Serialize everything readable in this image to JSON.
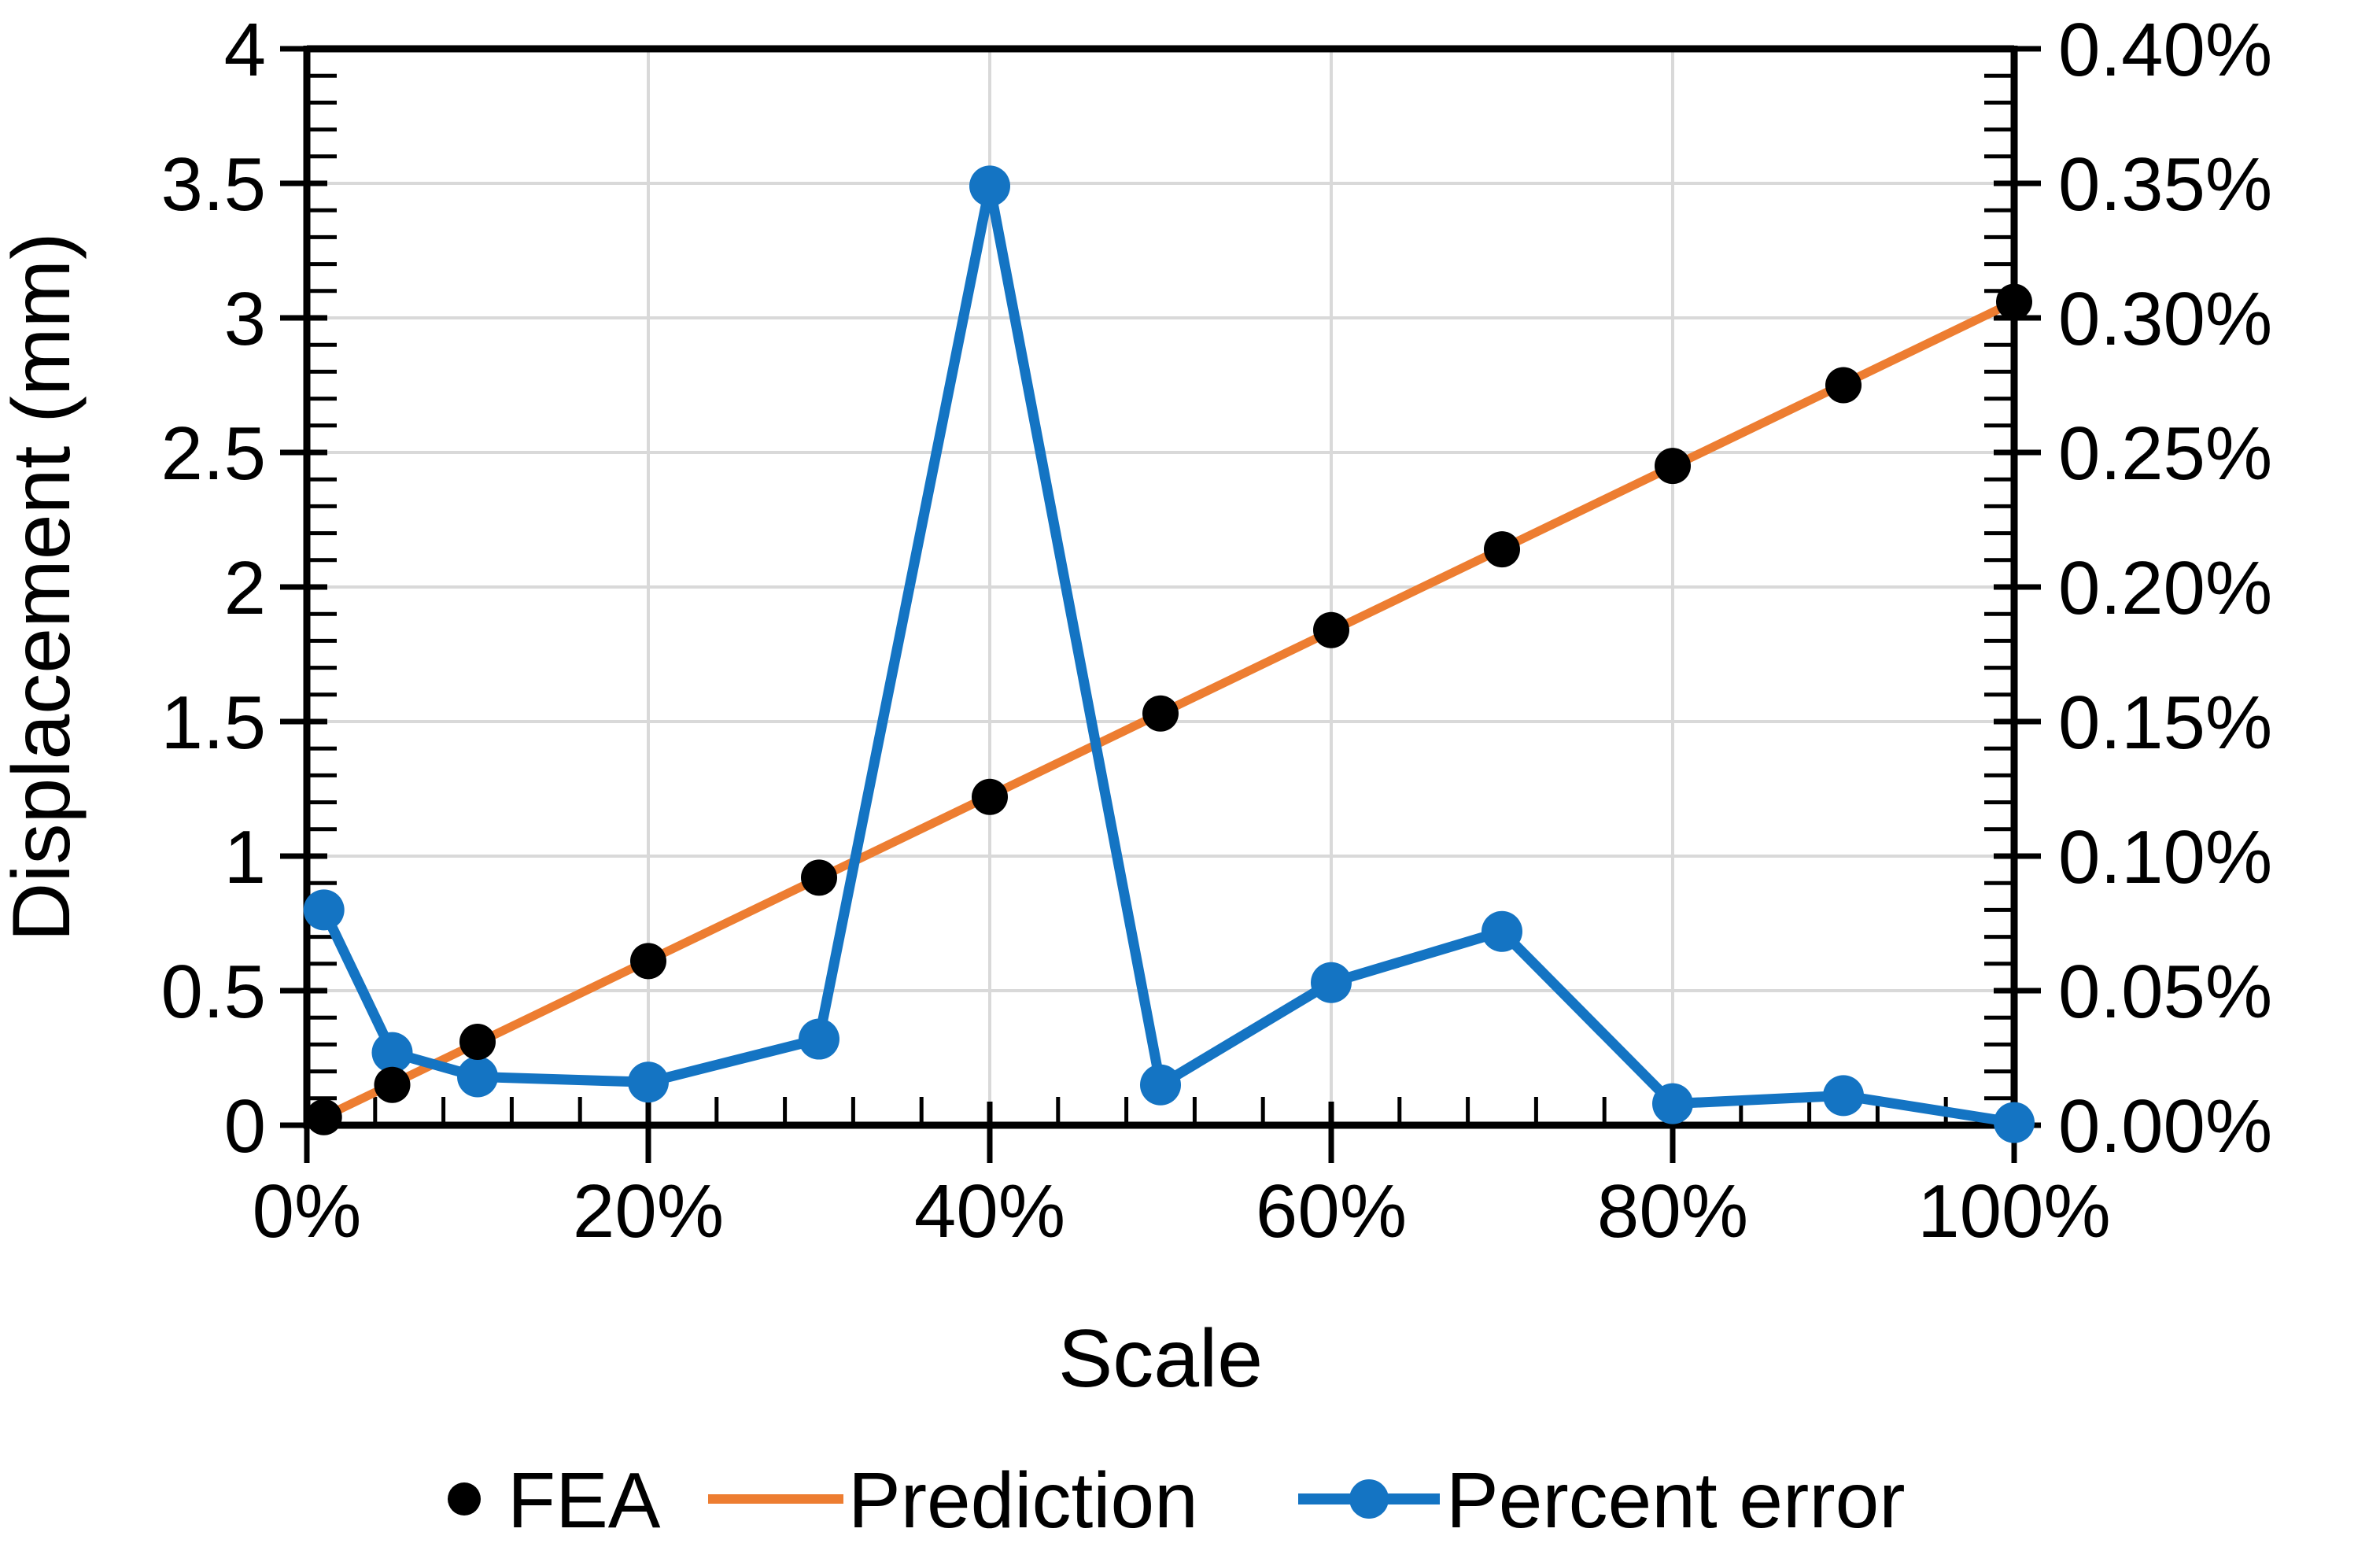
{
  "chart_data": {
    "type": "line",
    "title": "",
    "x": [
      1,
      5,
      10,
      20,
      30,
      40,
      50,
      60,
      70,
      80,
      90,
      100
    ],
    "series": [
      {
        "name": "FEA",
        "style": "points",
        "marker": "circle",
        "color": "#000000",
        "axis": "left",
        "values": [
          0.03,
          0.15,
          0.31,
          0.61,
          0.92,
          1.22,
          1.53,
          1.84,
          2.14,
          2.45,
          2.75,
          3.06
        ]
      },
      {
        "name": "Prediction",
        "style": "line",
        "color": "#ED7D31",
        "axis": "left",
        "values": [
          0.031,
          0.153,
          0.306,
          0.612,
          0.918,
          1.224,
          1.53,
          1.836,
          2.142,
          2.448,
          2.754,
          3.06
        ]
      },
      {
        "name": "Percent error",
        "style": "line+points",
        "marker": "circle",
        "color": "#1474C3",
        "axis": "right",
        "values": [
          0.08,
          0.027,
          0.018,
          0.016,
          0.032,
          0.349,
          0.015,
          0.053,
          0.072,
          0.008,
          0.011,
          0.001
        ]
      }
    ],
    "x_axis": {
      "label": "Scale",
      "min": 0,
      "max": 100,
      "major_tick_values": [
        0,
        20,
        40,
        60,
        80,
        100
      ],
      "major_tick_labels": [
        "0%",
        "20%",
        "40%",
        "60%",
        "80%",
        "100%"
      ],
      "minor_step": 4
    },
    "left_axis": {
      "label": "Displacement (mm)",
      "min": 0,
      "max": 4,
      "major_tick_values": [
        0,
        0.5,
        1,
        1.5,
        2,
        2.5,
        3,
        3.5,
        4
      ],
      "major_tick_labels": [
        "0",
        "0.5",
        "1",
        "1.5",
        "2",
        "2.5",
        "3",
        "3.5",
        "4"
      ],
      "minor_step": 0.1
    },
    "right_axis": {
      "label": "",
      "min": 0,
      "max": 0.4,
      "major_tick_values": [
        0,
        0.05,
        0.1,
        0.15,
        0.2,
        0.25,
        0.3,
        0.35,
        0.4
      ],
      "major_tick_labels": [
        "0.00%",
        "0.05%",
        "0.10%",
        "0.15%",
        "0.20%",
        "0.25%",
        "0.30%",
        "0.35%",
        "0.40%"
      ],
      "minor_step": 0.01
    },
    "grid": {
      "show": true,
      "color": "#D9D9D9"
    },
    "axis_color": "#000000",
    "text_color": "#000000",
    "legend_position": "bottom"
  }
}
